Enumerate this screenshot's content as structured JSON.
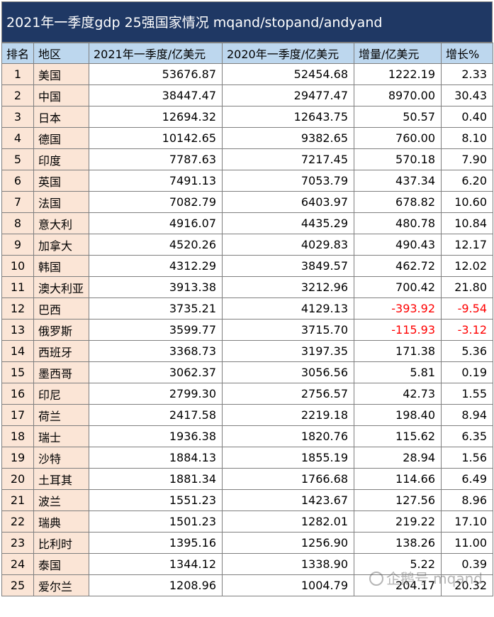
{
  "title": "2021年一季度gdp 25强国家情况 mqand/stopand/andyand",
  "headers": {
    "rank": "排名",
    "region": "地区",
    "q1_2021": "2021年一季度/亿美元",
    "q1_2020": "2020年一季度/亿美元",
    "increase": "增量/亿美元",
    "growth": "增长%"
  },
  "rows": [
    {
      "rank": "1",
      "region": "美国",
      "q1_2021": "53676.87",
      "q1_2020": "52454.68",
      "increase": "1222.19",
      "growth": "2.33"
    },
    {
      "rank": "2",
      "region": "中国",
      "q1_2021": "38447.47",
      "q1_2020": "29477.47",
      "increase": "8970.00",
      "growth": "30.43"
    },
    {
      "rank": "3",
      "region": "日本",
      "q1_2021": "12694.32",
      "q1_2020": "12643.75",
      "increase": "50.57",
      "growth": "0.40"
    },
    {
      "rank": "4",
      "region": "德国",
      "q1_2021": "10142.65",
      "q1_2020": "9382.65",
      "increase": "760.00",
      "growth": "8.10"
    },
    {
      "rank": "5",
      "region": "印度",
      "q1_2021": "7787.63",
      "q1_2020": "7217.45",
      "increase": "570.18",
      "growth": "7.90"
    },
    {
      "rank": "6",
      "region": "英国",
      "q1_2021": "7491.13",
      "q1_2020": "7053.79",
      "increase": "437.34",
      "growth": "6.20"
    },
    {
      "rank": "7",
      "region": "法国",
      "q1_2021": "7082.79",
      "q1_2020": "6403.97",
      "increase": "678.82",
      "growth": "10.60"
    },
    {
      "rank": "8",
      "region": "意大利",
      "q1_2021": "4916.07",
      "q1_2020": "4435.29",
      "increase": "480.78",
      "growth": "10.84"
    },
    {
      "rank": "9",
      "region": "加拿大",
      "q1_2021": "4520.26",
      "q1_2020": "4029.83",
      "increase": "490.43",
      "growth": "12.17"
    },
    {
      "rank": "10",
      "region": "韩国",
      "q1_2021": "4312.29",
      "q1_2020": "3849.57",
      "increase": "462.72",
      "growth": "12.02"
    },
    {
      "rank": "11",
      "region": "澳大利亚",
      "q1_2021": "3913.38",
      "q1_2020": "3212.96",
      "increase": "700.42",
      "growth": "21.80"
    },
    {
      "rank": "12",
      "region": "巴西",
      "q1_2021": "3735.21",
      "q1_2020": "4129.13",
      "increase": "-393.92",
      "growth": "-9.54",
      "negative": true
    },
    {
      "rank": "13",
      "region": "俄罗斯",
      "q1_2021": "3599.77",
      "q1_2020": "3715.70",
      "increase": "-115.93",
      "growth": "-3.12",
      "negative": true
    },
    {
      "rank": "14",
      "region": "西班牙",
      "q1_2021": "3368.73",
      "q1_2020": "3197.35",
      "increase": "171.38",
      "growth": "5.36"
    },
    {
      "rank": "15",
      "region": "墨西哥",
      "q1_2021": "3062.37",
      "q1_2020": "3056.56",
      "increase": "5.81",
      "growth": "0.19"
    },
    {
      "rank": "16",
      "region": "印尼",
      "q1_2021": "2799.30",
      "q1_2020": "2756.57",
      "increase": "42.73",
      "growth": "1.55"
    },
    {
      "rank": "17",
      "region": "荷兰",
      "q1_2021": "2417.58",
      "q1_2020": "2219.18",
      "increase": "198.40",
      "growth": "8.94"
    },
    {
      "rank": "18",
      "region": "瑞士",
      "q1_2021": "1936.38",
      "q1_2020": "1820.76",
      "increase": "115.62",
      "growth": "6.35"
    },
    {
      "rank": "19",
      "region": "沙特",
      "q1_2021": "1884.13",
      "q1_2020": "1855.19",
      "increase": "28.94",
      "growth": "1.56"
    },
    {
      "rank": "20",
      "region": "土耳其",
      "q1_2021": "1881.34",
      "q1_2020": "1766.68",
      "increase": "114.66",
      "growth": "6.49"
    },
    {
      "rank": "21",
      "region": "波兰",
      "q1_2021": "1551.23",
      "q1_2020": "1423.67",
      "increase": "127.56",
      "growth": "8.96"
    },
    {
      "rank": "22",
      "region": "瑞典",
      "q1_2021": "1501.23",
      "q1_2020": "1282.01",
      "increase": "219.22",
      "growth": "17.10"
    },
    {
      "rank": "23",
      "region": "比利时",
      "q1_2021": "1395.16",
      "q1_2020": "1256.90",
      "increase": "138.26",
      "growth": "11.00"
    },
    {
      "rank": "24",
      "region": "泰国",
      "q1_2021": "1344.12",
      "q1_2020": "1338.90",
      "increase": "5.22",
      "growth": "0.39"
    },
    {
      "rank": "25",
      "region": "爱尔兰",
      "q1_2021": "1208.96",
      "q1_2020": "1004.79",
      "increase": "204.17",
      "growth": "20.32"
    }
  ],
  "watermark": "企鹅号 mqand",
  "colors": {
    "title_bg": "#1f3864",
    "header_bg": "#bdd7ee",
    "rank_bg": "#fbe5d6",
    "negative": "#ff0000"
  }
}
